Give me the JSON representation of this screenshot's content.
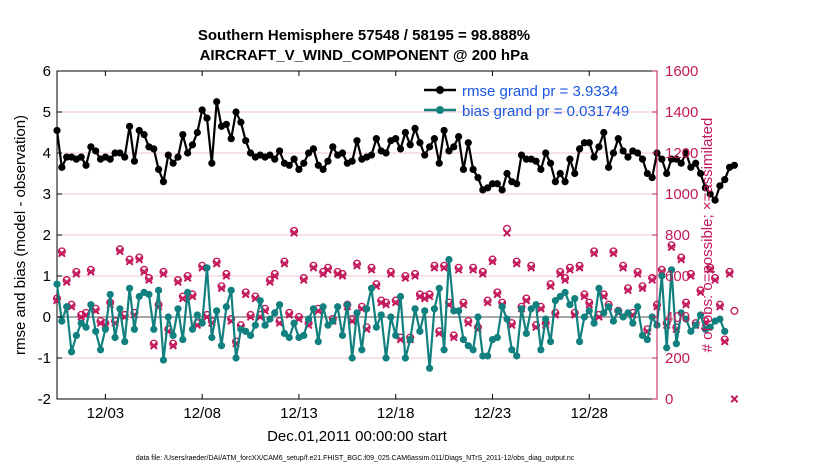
{
  "chart_data": {
    "type": "line",
    "title_lines": [
      "Southern Hemisphere 57548 / 58195 = 98.888%",
      "AIRCRAFT_V_WIND_COMPONENT @ 200 hPa"
    ],
    "xlabel": "Dec.01,2011 00:00:00 start",
    "ylabel_left": "rmse and bias (model - observation)",
    "ylabel_right": "# of obs: o=possible; ×=assimilated",
    "footer": "data file: /Users/raeder/DAI/ATM_forcXX/CAM6_setup/f.e21.FHIST_BGC.f09_025.CAM6assim.011/Diags_NTrS_2011-12/obs_diag_output.nc",
    "xlim": [
      0.5,
      31.5
    ],
    "ylim_left": [
      -2,
      6
    ],
    "ylim_right": [
      0,
      1600
    ],
    "x_ticks": [
      {
        "x": 3,
        "label": "12/03"
      },
      {
        "x": 8,
        "label": "12/08"
      },
      {
        "x": 13,
        "label": "12/13"
      },
      {
        "x": 18,
        "label": "12/18"
      },
      {
        "x": 23,
        "label": "12/23"
      },
      {
        "x": 28,
        "label": "12/28"
      }
    ],
    "y_ticks_left": [
      "-2",
      "-1",
      "0",
      "1",
      "2",
      "3",
      "4",
      "5",
      "6"
    ],
    "y_ticks_right": [
      "0",
      "200",
      "400",
      "600",
      "800",
      "1000",
      "1200",
      "1400",
      "1600"
    ],
    "x_start": 0.5,
    "x_step": 0.25,
    "series": [
      {
        "name": "rmse grand pr = 3.9334",
        "axis": "left",
        "color": "#000000",
        "values": [
          4.55,
          3.65,
          3.9,
          3.9,
          3.85,
          3.9,
          3.7,
          4.15,
          4.05,
          3.85,
          3.9,
          3.85,
          4.0,
          4.0,
          3.9,
          4.65,
          3.8,
          4.55,
          4.45,
          4.15,
          4.1,
          3.6,
          3.3,
          3.95,
          3.75,
          3.9,
          4.45,
          4.0,
          4.2,
          4.5,
          5.05,
          4.85,
          3.75,
          5.25,
          4.65,
          4.7,
          4.35,
          5.0,
          4.75,
          4.3,
          4.0,
          3.9,
          3.95,
          3.9,
          3.95,
          3.85,
          4.05,
          3.75,
          3.7,
          3.85,
          3.6,
          3.75,
          4.0,
          4.1,
          3.7,
          3.6,
          3.8,
          4.15,
          3.95,
          4.0,
          3.75,
          3.8,
          4.3,
          3.85,
          3.9,
          3.95,
          4.35,
          4.05,
          4.0,
          4.3,
          4.35,
          4.1,
          4.5,
          4.2,
          4.6,
          4.25,
          3.95,
          4.15,
          4.35,
          3.75,
          4.55,
          4.05,
          4.15,
          4.4,
          3.6,
          4.25,
          3.6,
          3.4,
          3.1,
          3.15,
          3.25,
          3.25,
          3.1,
          3.5,
          3.3,
          3.25,
          3.95,
          3.85,
          3.85,
          3.8,
          3.6,
          4.0,
          3.75,
          3.3,
          3.5,
          3.3,
          3.85,
          3.5,
          4.1,
          4.25,
          4.25,
          3.9,
          4.15,
          4.5,
          3.65,
          4.0,
          4.35,
          4.05,
          3.9,
          4.05,
          4.0,
          3.85,
          3.5,
          3.4,
          4.0,
          3.85,
          3.5,
          3.85,
          3.85,
          3.75,
          4.0,
          3.65,
          3.75,
          3.5,
          3.15,
          3.0,
          2.85,
          3.2,
          3.35,
          3.65,
          3.7
        ]
      },
      {
        "name": "bias grand pr = 0.031749",
        "axis": "left",
        "color": "#11807f",
        "values": [
          0.8,
          -0.1,
          0.25,
          -0.85,
          -0.45,
          -0.15,
          -0.25,
          0.3,
          -0.35,
          -0.8,
          -0.3,
          0.55,
          -0.5,
          0.2,
          -0.6,
          0.7,
          -0.3,
          0.5,
          0.6,
          0.55,
          -0.3,
          0.65,
          -1.05,
          0.0,
          -0.45,
          0.2,
          -0.55,
          0.6,
          -0.3,
          0.05,
          -0.15,
          1.2,
          -0.5,
          0.15,
          -0.7,
          0.25,
          0.65,
          -1.0,
          -0.3,
          -0.35,
          -0.45,
          -0.2,
          0.4,
          -0.2,
          -0.05,
          0.1,
          0.3,
          -0.4,
          -0.5,
          -0.15,
          -0.5,
          -0.45,
          -0.05,
          0.2,
          -0.6,
          0.25,
          -0.2,
          -0.1,
          0.25,
          -0.45,
          0.3,
          -1.0,
          0.1,
          -0.8,
          0.2,
          0.7,
          -0.25,
          0.05,
          -1.0,
          0.0,
          -0.45,
          0.5,
          -1.0,
          -0.55,
          0.2,
          -0.35,
          0.15,
          -1.25,
          0.2,
          0.7,
          -0.8,
          1.4,
          0.15,
          0.15,
          -0.55,
          -0.7,
          -0.8,
          0.0,
          -0.95,
          -0.95,
          -0.55,
          -0.5,
          0.25,
          -0.05,
          -0.8,
          -0.95,
          0.2,
          -0.4,
          0.2,
          0.3,
          -0.8,
          -0.05,
          -0.6,
          0.4,
          0.5,
          0.6,
          0.3,
          0.45,
          -0.6,
          0.0,
          0.15,
          -0.15,
          0.7,
          0.1,
          0.25,
          -0.1,
          0.15,
          0.0,
          0.1,
          -0.15,
          0.25,
          -0.45,
          -0.55,
          0.0,
          -0.2,
          1.0,
          -0.75,
          1.15,
          -0.65,
          0.1,
          -0.05,
          -0.35,
          -0.2,
          0.05,
          -0.3,
          -0.25,
          -0.1,
          -0.05,
          -0.35
        ]
      },
      {
        "name": "# obs possible",
        "axis": "right",
        "color": "#c2185b",
        "marker": "circle",
        "values": [
          490,
          720,
          580,
          460,
          620,
          410,
          420,
          630,
          440,
          380,
          370,
          470,
          380,
          730,
          410,
          680,
          420,
          690,
          630,
          590,
          270,
          460,
          620,
          340,
          270,
          580,
          500,
          600,
          510,
          370,
          650,
          410,
          380,
          670,
          550,
          610,
          390,
          280,
          360,
          520,
          410,
          500,
          410,
          440,
          580,
          610,
          380,
          670,
          420,
          820,
          400,
          590,
          370,
          650,
          440,
          620,
          640,
          390,
          620,
          610,
          460,
          390,
          660,
          450,
          350,
          640,
          560,
          480,
          470,
          620,
          480,
          300,
          600,
          300,
          610,
          510,
          500,
          510,
          650,
          330,
          650,
          470,
          310,
          640,
          470,
          380,
          640,
          350,
          620,
          480,
          680,
          520,
          470,
          830,
          370,
          670,
          450,
          490,
          650,
          360,
          450,
          370,
          560,
          420,
          620,
          590,
          640,
          420,
          650,
          510,
          470,
          720,
          410,
          510,
          460,
          720,
          430,
          650,
          540,
          420,
          620,
          550,
          340,
          590,
          460,
          630,
          370,
          750,
          350,
          690,
          470,
          610,
          370,
          530,
          380,
          640,
          590,
          460,
          290,
          620,
          430
        ]
      },
      {
        "name": "# obs assimilated",
        "axis": "right",
        "color": "#c2185b",
        "marker": "x",
        "values": [
          480,
          710,
          570,
          450,
          610,
          400,
          410,
          620,
          430,
          370,
          360,
          460,
          370,
          720,
          400,
          670,
          410,
          680,
          620,
          580,
          260,
          450,
          610,
          330,
          260,
          570,
          490,
          590,
          500,
          360,
          640,
          400,
          370,
          660,
          540,
          600,
          380,
          270,
          350,
          510,
          400,
          490,
          400,
          430,
          570,
          600,
          370,
          660,
          410,
          810,
          390,
          580,
          360,
          640,
          430,
          610,
          630,
          380,
          610,
          600,
          450,
          380,
          650,
          440,
          340,
          630,
          550,
          470,
          460,
          610,
          470,
          290,
          590,
          290,
          600,
          500,
          490,
          500,
          640,
          320,
          640,
          460,
          300,
          630,
          460,
          370,
          630,
          340,
          610,
          470,
          670,
          510,
          460,
          810,
          360,
          660,
          440,
          480,
          640,
          350,
          440,
          360,
          550,
          410,
          610,
          580,
          630,
          410,
          640,
          500,
          460,
          710,
          400,
          500,
          450,
          710,
          420,
          640,
          530,
          410,
          610,
          540,
          330,
          580,
          450,
          620,
          360,
          740,
          340,
          680,
          460,
          600,
          360,
          520,
          370,
          630,
          580,
          450,
          280,
          610,
          0
        ]
      }
    ]
  }
}
